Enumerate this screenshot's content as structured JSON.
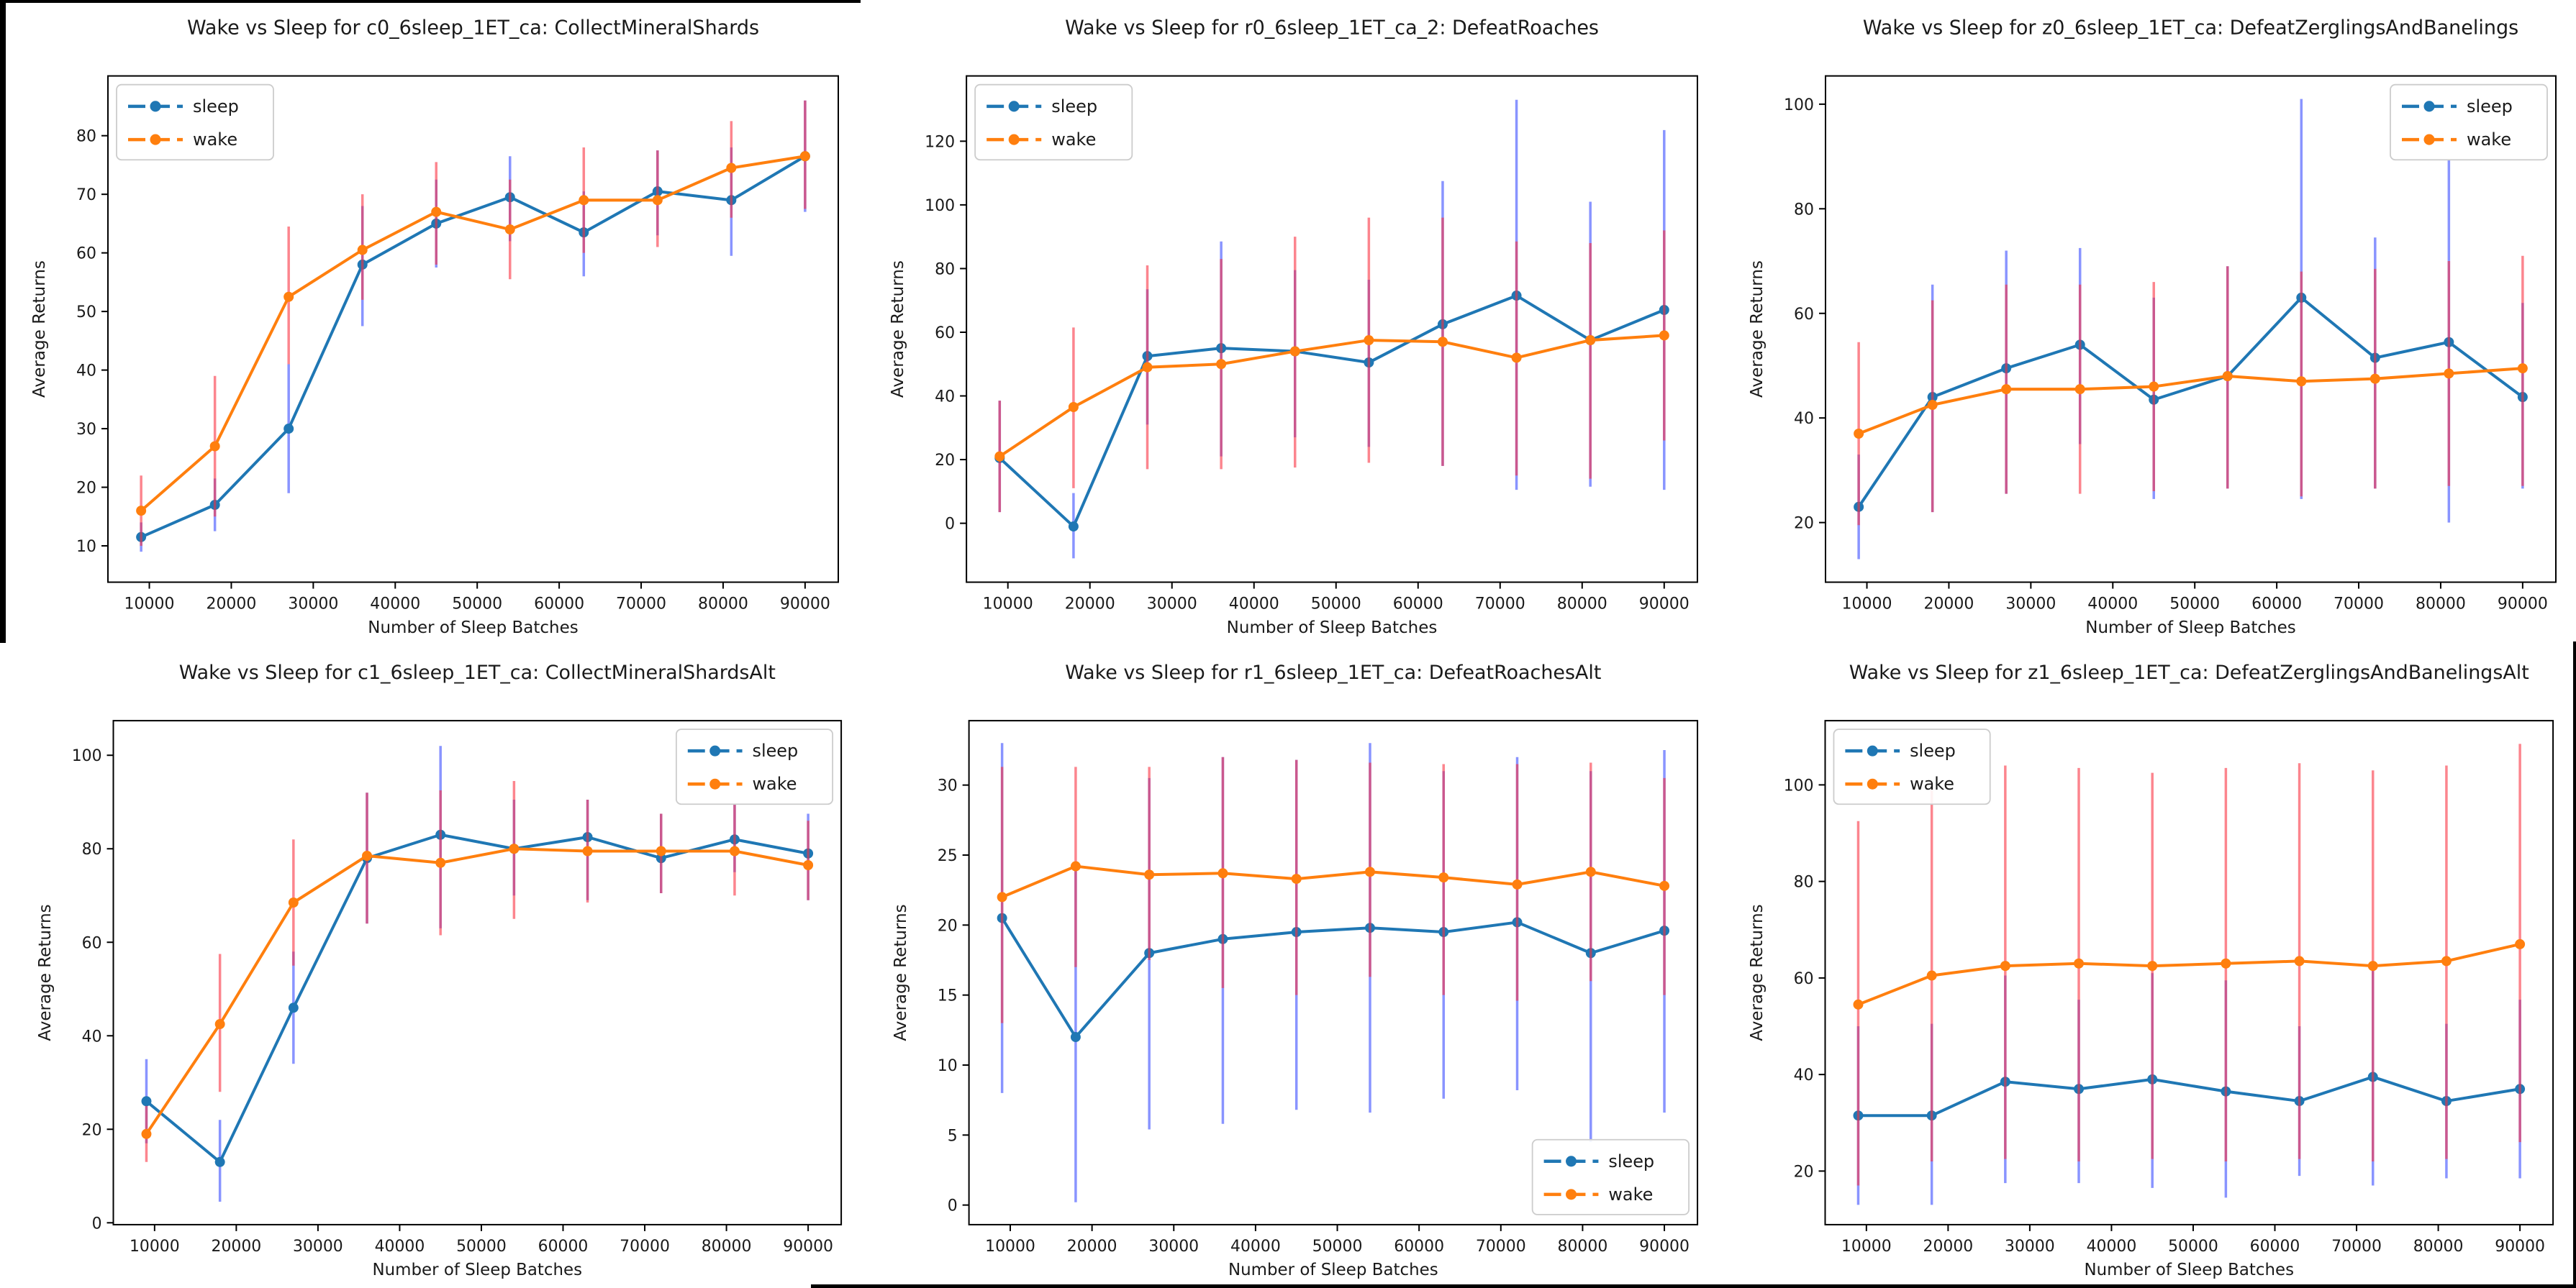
{
  "colors": {
    "sleep": "#1f77b4",
    "wake": "#ff7f0e",
    "sleep_err": "rgba(40,60,255,0.55)",
    "wake_err": "rgba(250,45,60,0.58)",
    "text": "#1a1a1a",
    "spine": "#000000",
    "legend_border": "#cccccc"
  },
  "legend": {
    "sleep_label": "sleep",
    "wake_label": "wake"
  },
  "chart_data": [
    {
      "id": "c0",
      "type": "line",
      "title": "Wake vs Sleep for c0_6sleep_1ET_ca: CollectMineralShards",
      "xlabel": "Number of Sleep Batches",
      "ylabel": "Average Returns",
      "legend_position": "upper-left",
      "x": [
        9000,
        18000,
        27000,
        36000,
        45000,
        54000,
        63000,
        72000,
        81000,
        90000
      ],
      "xlim": [
        4950,
        94050
      ],
      "xticks": [
        10000,
        20000,
        30000,
        40000,
        50000,
        60000,
        70000,
        80000,
        90000
      ],
      "xtick_labels": [
        "10000",
        "20000",
        "30000",
        "40000",
        "50000",
        "60000",
        "70000",
        "80000",
        "90000"
      ],
      "ylim": [
        3.8,
        90.2
      ],
      "yticks": [
        10,
        20,
        30,
        40,
        50,
        60,
        70,
        80
      ],
      "series": [
        {
          "name": "sleep",
          "values": [
            11.5,
            17,
            30,
            58,
            65,
            69.5,
            63.5,
            70.5,
            69,
            76.5
          ],
          "err_low": [
            9,
            12.5,
            19,
            47.5,
            57.5,
            62,
            56,
            63,
            59.5,
            67
          ],
          "err_high": [
            14,
            21.5,
            41,
            68,
            72.5,
            76.5,
            70.5,
            77.5,
            78,
            86
          ]
        },
        {
          "name": "wake",
          "values": [
            16,
            27,
            52.5,
            60.5,
            67,
            64,
            69,
            69,
            74.5,
            76.5
          ],
          "err_low": [
            10,
            15,
            41,
            52,
            58,
            55.5,
            60,
            61,
            66,
            67.5
          ],
          "err_high": [
            22,
            39,
            64.5,
            70,
            75.5,
            72.5,
            78,
            77.5,
            82.5,
            86
          ]
        }
      ]
    },
    {
      "id": "r0",
      "type": "line",
      "title": "Wake vs Sleep for r0_6sleep_1ET_ca_2: DefeatRoaches",
      "xlabel": "Number of Sleep Batches",
      "ylabel": "Average Returns",
      "legend_position": "upper-left",
      "x": [
        9000,
        18000,
        27000,
        36000,
        45000,
        54000,
        63000,
        72000,
        81000,
        90000
      ],
      "xlim": [
        4950,
        94050
      ],
      "xticks": [
        10000,
        20000,
        30000,
        40000,
        50000,
        60000,
        70000,
        80000,
        90000
      ],
      "xtick_labels": [
        "10000",
        "20000",
        "30000",
        "40000",
        "50000",
        "60000",
        "70000",
        "80000",
        "90000"
      ],
      "ylim": [
        -18.5,
        140.5
      ],
      "yticks": [
        0,
        20,
        40,
        60,
        80,
        100,
        120
      ],
      "series": [
        {
          "name": "sleep",
          "values": [
            20.5,
            -1,
            52.5,
            55,
            54,
            50.5,
            62.5,
            71.5,
            57.5,
            67
          ],
          "err_low": [
            3.5,
            -11,
            31,
            21,
            27,
            24,
            18,
            10.5,
            11.5,
            10.5
          ],
          "err_high": [
            38.5,
            9.5,
            73.5,
            88.5,
            79.5,
            76.5,
            107.5,
            133,
            101,
            123.5
          ]
        },
        {
          "name": "wake",
          "values": [
            21,
            36.5,
            49,
            50,
            54,
            57.5,
            57,
            52,
            57.5,
            59
          ],
          "err_low": [
            3.5,
            11,
            17,
            17,
            17.5,
            19,
            18,
            15,
            14,
            26
          ],
          "err_high": [
            38.5,
            61.5,
            81,
            83,
            90,
            96,
            96,
            88.5,
            88,
            92
          ]
        }
      ]
    },
    {
      "id": "z0",
      "type": "line",
      "title": "Wake vs Sleep for z0_6sleep_1ET_ca: DefeatZerglingsAndBanelings",
      "xlabel": "Number of Sleep Batches",
      "ylabel": "Average Returns",
      "legend_position": "upper-right",
      "x": [
        9000,
        18000,
        27000,
        36000,
        45000,
        54000,
        63000,
        72000,
        81000,
        90000
      ],
      "xlim": [
        4950,
        94050
      ],
      "xticks": [
        10000,
        20000,
        30000,
        40000,
        50000,
        60000,
        70000,
        80000,
        90000
      ],
      "xtick_labels": [
        "10000",
        "20000",
        "30000",
        "40000",
        "50000",
        "60000",
        "70000",
        "80000",
        "90000"
      ],
      "ylim": [
        8.6,
        105.4
      ],
      "yticks": [
        20,
        40,
        60,
        80,
        100
      ],
      "series": [
        {
          "name": "sleep",
          "values": [
            23,
            44,
            49.5,
            54,
            43.5,
            48,
            63,
            51.5,
            54.5,
            44
          ],
          "err_low": [
            13,
            22,
            25.5,
            35,
            24.5,
            26.5,
            24.5,
            26.5,
            20,
            26.5
          ],
          "err_high": [
            33,
            65.5,
            72,
            72.5,
            63,
            69,
            101,
            74.5,
            89.5,
            62
          ]
        },
        {
          "name": "wake",
          "values": [
            37,
            42.5,
            45.5,
            45.5,
            46,
            48,
            47,
            47.5,
            48.5,
            49.5
          ],
          "err_low": [
            19.5,
            22,
            25.5,
            25.5,
            26,
            26.5,
            25,
            26.5,
            27,
            27
          ],
          "err_high": [
            54.5,
            62.5,
            65.5,
            65.5,
            66,
            69,
            68,
            68.5,
            70,
            71
          ]
        }
      ]
    },
    {
      "id": "c1",
      "type": "line",
      "title": "Wake vs Sleep for c1_6sleep_1ET_ca: CollectMineralShardsAlt",
      "xlabel": "Number of Sleep Batches",
      "ylabel": "Average Returns",
      "legend_position": "upper-right",
      "x": [
        9000,
        18000,
        27000,
        36000,
        45000,
        54000,
        63000,
        72000,
        81000,
        90000
      ],
      "xlim": [
        4950,
        94050
      ],
      "xticks": [
        10000,
        20000,
        30000,
        40000,
        50000,
        60000,
        70000,
        80000,
        90000
      ],
      "xtick_labels": [
        "10000",
        "20000",
        "30000",
        "40000",
        "50000",
        "60000",
        "70000",
        "80000",
        "90000"
      ],
      "ylim": [
        -0.4,
        107.4
      ],
      "yticks": [
        0,
        20,
        40,
        60,
        80,
        100
      ],
      "series": [
        {
          "name": "sleep",
          "values": [
            26,
            13,
            46,
            78,
            83,
            80,
            82.5,
            78,
            82,
            79
          ],
          "err_low": [
            17,
            4.5,
            34,
            64,
            63,
            70,
            69,
            70.5,
            75,
            69
          ],
          "err_high": [
            35,
            22,
            58,
            92,
            102,
            90.5,
            90.5,
            87.5,
            89.5,
            87.5
          ]
        },
        {
          "name": "wake",
          "values": [
            19,
            42.5,
            68.5,
            78.5,
            77,
            80,
            79.5,
            79.5,
            79.5,
            76.5
          ],
          "err_low": [
            13,
            28,
            55,
            64,
            61.5,
            65,
            68.5,
            70.5,
            70,
            69
          ],
          "err_high": [
            25,
            57.5,
            82,
            92,
            92.5,
            94.5,
            90.5,
            87.5,
            89.5,
            86
          ]
        }
      ]
    },
    {
      "id": "r1",
      "type": "line",
      "title": "Wake vs Sleep for r1_6sleep_1ET_ca: DefeatRoachesAlt",
      "xlabel": "Number of Sleep Batches",
      "ylabel": "Average Returns",
      "legend_position": "lower-right",
      "x": [
        9000,
        18000,
        27000,
        36000,
        45000,
        54000,
        63000,
        72000,
        81000,
        90000
      ],
      "xlim": [
        4950,
        94050
      ],
      "xticks": [
        10000,
        20000,
        30000,
        40000,
        50000,
        60000,
        70000,
        80000,
        90000
      ],
      "xtick_labels": [
        "10000",
        "20000",
        "30000",
        "40000",
        "50000",
        "60000",
        "70000",
        "80000",
        "90000"
      ],
      "ylim": [
        -1.4,
        34.6
      ],
      "yticks": [
        0,
        5,
        10,
        15,
        20,
        25,
        30
      ],
      "series": [
        {
          "name": "sleep",
          "values": [
            20.5,
            12,
            18,
            19,
            19.5,
            19.8,
            19.5,
            20.2,
            18,
            19.6
          ],
          "err_low": [
            8,
            0.2,
            5.4,
            5.8,
            6.8,
            6.6,
            7.6,
            8.2,
            4.5,
            6.6
          ],
          "err_high": [
            33,
            24,
            30.5,
            32,
            31.8,
            33,
            31,
            32,
            31,
            32.5
          ]
        },
        {
          "name": "wake",
          "values": [
            22,
            24.2,
            23.6,
            23.7,
            23.3,
            23.8,
            23.4,
            22.9,
            23.8,
            22.8
          ],
          "err_low": [
            13,
            17,
            17.5,
            15.5,
            15,
            16.3,
            15,
            14.6,
            16,
            15
          ],
          "err_high": [
            31.3,
            31.3,
            31.3,
            32,
            31.8,
            31.6,
            31.5,
            31.5,
            31.6,
            30.5
          ]
        }
      ]
    },
    {
      "id": "z1",
      "type": "line",
      "title": "Wake vs Sleep for z1_6sleep_1ET_ca: DefeatZerglingsAndBanelingsAlt",
      "xlabel": "Number of Sleep Batches",
      "ylabel": "Average Returns",
      "legend_position": "upper-left",
      "x": [
        9000,
        18000,
        27000,
        36000,
        45000,
        54000,
        63000,
        72000,
        81000,
        90000
      ],
      "xlim": [
        4950,
        94050
      ],
      "xticks": [
        10000,
        20000,
        30000,
        40000,
        50000,
        60000,
        70000,
        80000,
        90000
      ],
      "xtick_labels": [
        "10000",
        "20000",
        "30000",
        "40000",
        "50000",
        "60000",
        "70000",
        "80000",
        "90000"
      ],
      "ylim": [
        8.9,
        113.3
      ],
      "yticks": [
        20,
        40,
        60,
        80,
        100
      ],
      "series": [
        {
          "name": "sleep",
          "values": [
            31.5,
            31.5,
            38.5,
            37,
            39,
            36.5,
            34.5,
            39.5,
            34.5,
            37
          ],
          "err_low": [
            13,
            13,
            17.5,
            17.5,
            16.5,
            14.5,
            19,
            17,
            18.5,
            18.5
          ],
          "err_high": [
            50,
            50.5,
            60.5,
            55.5,
            61,
            59.5,
            50,
            62.5,
            50.5,
            55.5
          ]
        },
        {
          "name": "wake",
          "values": [
            54.5,
            60.5,
            62.5,
            63,
            62.5,
            63,
            63.5,
            62.5,
            63.5,
            67
          ],
          "err_low": [
            17,
            22,
            22.5,
            22,
            22.5,
            22,
            22.5,
            22,
            22.5,
            26
          ],
          "err_high": [
            92.5,
            100.5,
            104,
            103.5,
            102.5,
            103.5,
            104.5,
            103,
            104,
            108.5
          ]
        }
      ]
    }
  ]
}
